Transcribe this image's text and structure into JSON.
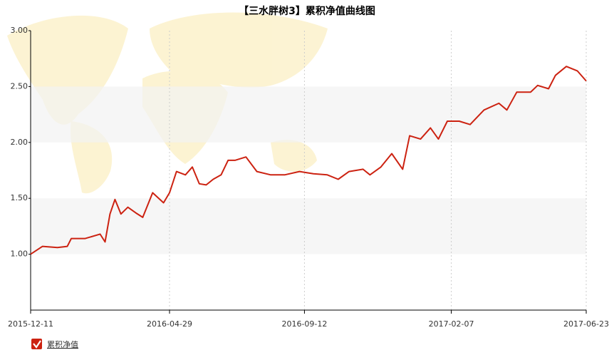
{
  "chart_data": {
    "type": "line",
    "title": "【三水胖树3】累积净值曲线图",
    "x": [
      "2015-12-11",
      "2015-12-23",
      "2016-01-07",
      "2016-01-17",
      "2016-01-21",
      "2016-02-04",
      "2016-02-19",
      "2016-02-24",
      "2016-02-29",
      "2016-03-05",
      "2016-03-11",
      "2016-03-18",
      "2016-03-26",
      "2016-04-02",
      "2016-04-12",
      "2016-04-23",
      "2016-04-29",
      "2016-05-06",
      "2016-05-15",
      "2016-05-22",
      "2016-05-29",
      "2016-06-05",
      "2016-06-12",
      "2016-06-20",
      "2016-06-27",
      "2016-07-04",
      "2016-07-15",
      "2016-07-26",
      "2016-08-09",
      "2016-08-23",
      "2016-09-07",
      "2016-09-21",
      "2016-10-05",
      "2016-10-16",
      "2016-10-27",
      "2016-11-10",
      "2016-11-17",
      "2016-11-28",
      "2016-12-09",
      "2016-12-20",
      "2016-12-27",
      "2017-01-07",
      "2017-01-17",
      "2017-01-25",
      "2017-02-03",
      "2017-02-15",
      "2017-02-26",
      "2017-03-12",
      "2017-03-27",
      "2017-04-04",
      "2017-04-14",
      "2017-04-28",
      "2017-05-05",
      "2017-05-16",
      "2017-05-23",
      "2017-06-03",
      "2017-06-14",
      "2017-06-23"
    ],
    "series": [
      {
        "name": "累积净值",
        "color": "#cc2211",
        "values": [
          1.0,
          1.07,
          1.06,
          1.07,
          1.14,
          1.14,
          1.18,
          1.11,
          1.36,
          1.49,
          1.36,
          1.42,
          1.37,
          1.33,
          1.55,
          1.46,
          1.55,
          1.74,
          1.71,
          1.78,
          1.63,
          1.62,
          1.67,
          1.71,
          1.84,
          1.84,
          1.87,
          1.74,
          1.71,
          1.71,
          1.74,
          1.72,
          1.71,
          1.67,
          1.74,
          1.76,
          1.71,
          1.78,
          1.9,
          1.76,
          2.06,
          2.03,
          2.13,
          2.03,
          2.19,
          2.19,
          2.16,
          2.29,
          2.35,
          2.29,
          2.45,
          2.45,
          2.51,
          2.48,
          2.6,
          2.68,
          2.64,
          2.55
        ]
      }
    ],
    "xlim": [
      "2015-12-11",
      "2017-06-23"
    ],
    "xticks": [
      "2015-12-11",
      "2016-04-29",
      "2016-09-12",
      "2017-02-07",
      "2017-06-23"
    ],
    "ylim": [
      0.5,
      3
    ],
    "yticks": [
      {
        "value": 1,
        "label": "1.00"
      },
      {
        "value": 1.5,
        "label": "1.50"
      },
      {
        "value": 2,
        "label": "2.00"
      },
      {
        "value": 2.5,
        "label": "2.50"
      },
      {
        "value": 3,
        "label": "3.00"
      }
    ],
    "grid_bands": true,
    "x_grid": true
  }
}
